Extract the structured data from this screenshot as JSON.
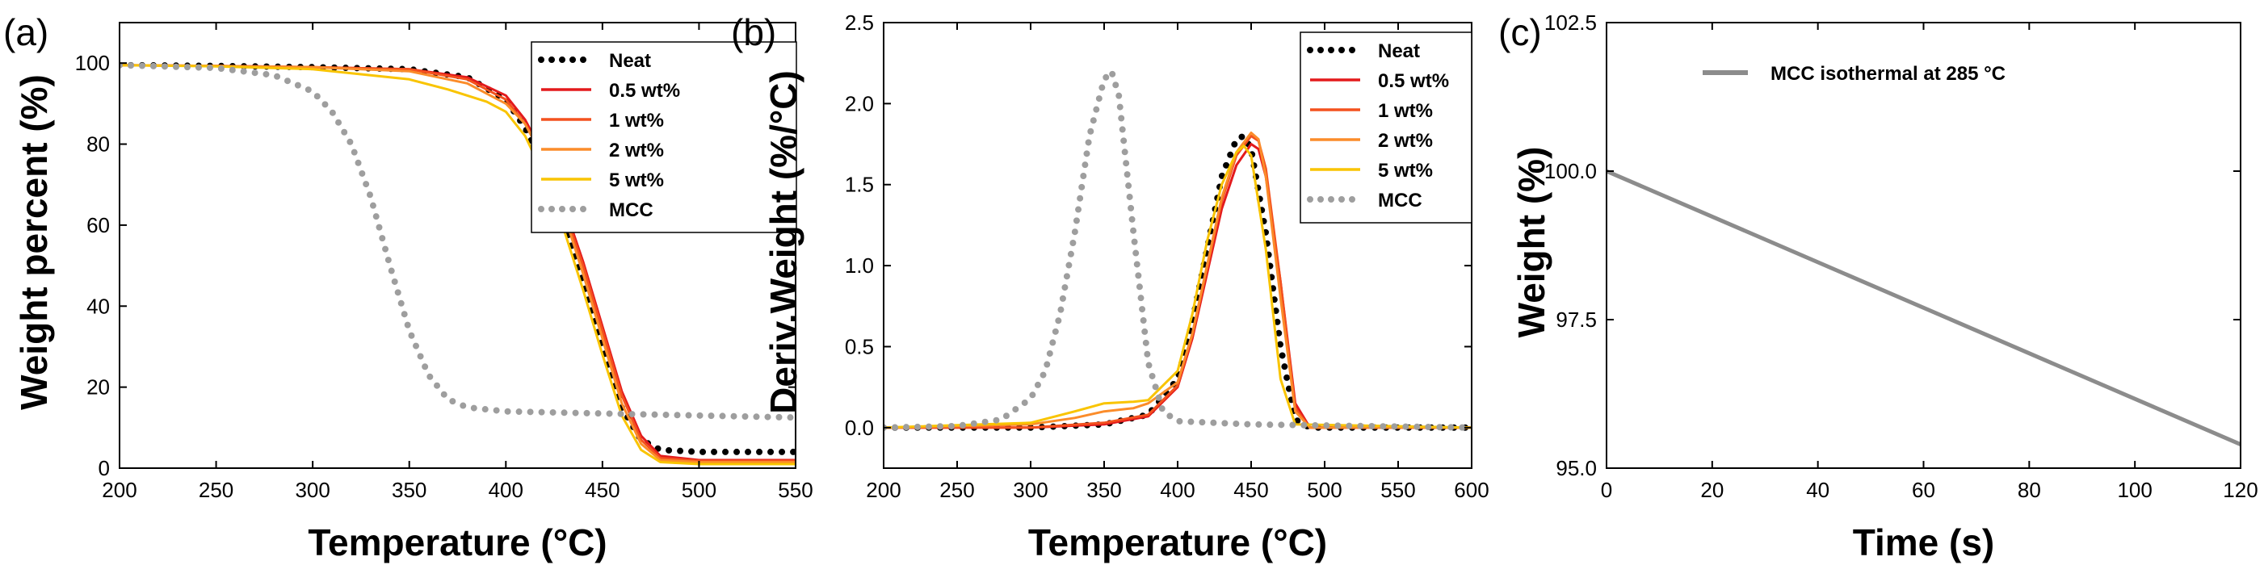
{
  "colors": {
    "neat": "#000000",
    "wt05": "#e31a1c",
    "wt1": "#f4511e",
    "wt2": "#fb8c2a",
    "wt5": "#f9c400",
    "mcc": "#9e9e9e",
    "isothermal": "#8c8c8c"
  },
  "chart_data": [
    {
      "type": "line",
      "panel_label": "(a)",
      "xlabel": "Temperature (°C)",
      "ylabel": "Weight percent (%)",
      "xlim": [
        200,
        550
      ],
      "ylim": [
        0,
        110
      ],
      "xticks": [
        200,
        250,
        300,
        350,
        400,
        450,
        500,
        550
      ],
      "yticks": [
        0,
        20,
        40,
        60,
        80,
        100
      ],
      "xtick_labels": [
        "200",
        "250",
        "300",
        "350",
        "400",
        "450",
        "500",
        "550"
      ],
      "ytick_labels": [
        "0",
        "20",
        "40",
        "60",
        "80",
        "100"
      ],
      "legend_position": "top-right",
      "series": [
        {
          "name": "Neat",
          "style": "dotted-black",
          "x": [
            200,
            250,
            300,
            350,
            380,
            400,
            410,
            420,
            430,
            440,
            450,
            460,
            470,
            480,
            500,
            550
          ],
          "y": [
            99.5,
            99.3,
            99.0,
            98.5,
            96.5,
            91.0,
            84.0,
            74.0,
            61.0,
            46.0,
            30.0,
            15.0,
            7.0,
            4.5,
            4.0,
            4.0
          ]
        },
        {
          "name": "0.5 wt%",
          "style": "solid",
          "x": [
            200,
            250,
            300,
            350,
            380,
            400,
            410,
            420,
            430,
            440,
            450,
            460,
            470,
            480,
            500,
            550
          ],
          "y": [
            99.5,
            99.3,
            99.0,
            98.5,
            96.5,
            92.0,
            86.0,
            77.0,
            65.0,
            51.0,
            35.0,
            19.0,
            8.0,
            3.0,
            2.0,
            2.0
          ]
        },
        {
          "name": "1 wt%",
          "style": "solid",
          "x": [
            200,
            250,
            300,
            350,
            380,
            400,
            410,
            420,
            430,
            440,
            450,
            460,
            470,
            480,
            500,
            550
          ],
          "y": [
            99.5,
            99.3,
            99.0,
            98.5,
            96.0,
            91.0,
            85.0,
            76.0,
            64.0,
            50.0,
            34.0,
            18.0,
            7.0,
            2.5,
            1.8,
            1.8
          ]
        },
        {
          "name": "2 wt%",
          "style": "solid",
          "x": [
            200,
            250,
            300,
            350,
            380,
            400,
            410,
            420,
            430,
            440,
            450,
            460,
            470,
            480,
            500,
            550
          ],
          "y": [
            99.5,
            99.3,
            99.0,
            98.0,
            95.0,
            90.0,
            85.0,
            76.0,
            63.0,
            48.0,
            32.0,
            16.0,
            6.0,
            2.0,
            1.5,
            1.5
          ]
        },
        {
          "name": "5 wt%",
          "style": "solid",
          "x": [
            200,
            250,
            300,
            350,
            370,
            390,
            400,
            410,
            420,
            430,
            440,
            450,
            460,
            470,
            480,
            500,
            550
          ],
          "y": [
            99.5,
            99.2,
            98.5,
            96.0,
            93.5,
            90.5,
            88.0,
            82.0,
            72.0,
            59.0,
            44.0,
            28.0,
            13.0,
            4.5,
            1.5,
            1.0,
            1.0
          ]
        },
        {
          "name": "MCC",
          "style": "dotted-grey",
          "x": [
            200,
            250,
            280,
            300,
            310,
            320,
            330,
            340,
            350,
            360,
            370,
            380,
            400,
            450,
            500,
            550
          ],
          "y": [
            99.5,
            98.8,
            97.0,
            93.0,
            88.0,
            80.0,
            67.0,
            50.0,
            34.0,
            23.0,
            17.0,
            15.0,
            14.0,
            13.5,
            13.0,
            12.5
          ]
        }
      ]
    },
    {
      "type": "line",
      "panel_label": "(b)",
      "xlabel": "Temperature (°C)",
      "ylabel": "Deriv.Weight (%/°C)",
      "xlim": [
        200,
        600
      ],
      "ylim": [
        -0.25,
        2.5
      ],
      "xticks": [
        200,
        250,
        300,
        350,
        400,
        450,
        500,
        550,
        600
      ],
      "yticks": [
        0.0,
        0.5,
        1.0,
        1.5,
        2.0,
        2.5
      ],
      "xtick_labels": [
        "200",
        "250",
        "300",
        "350",
        "400",
        "450",
        "500",
        "550",
        "600"
      ],
      "ytick_labels": [
        "0.0",
        "0.5",
        "1.0",
        "1.5",
        "2.0",
        "2.5"
      ],
      "legend_position": "top-right",
      "series": [
        {
          "name": "Neat",
          "style": "dotted-black",
          "x": [
            200,
            300,
            350,
            380,
            400,
            410,
            420,
            430,
            440,
            445,
            450,
            460,
            470,
            480,
            490,
            600
          ],
          "y": [
            0,
            0,
            0.02,
            0.08,
            0.3,
            0.65,
            1.1,
            1.55,
            1.78,
            1.8,
            1.72,
            1.2,
            0.5,
            0.05,
            0,
            0
          ]
        },
        {
          "name": "0.5 wt%",
          "style": "solid",
          "x": [
            200,
            300,
            350,
            380,
            400,
            410,
            420,
            430,
            440,
            450,
            455,
            460,
            470,
            480,
            490,
            600
          ],
          "y": [
            0,
            0,
            0.02,
            0.07,
            0.25,
            0.55,
            0.95,
            1.35,
            1.62,
            1.75,
            1.72,
            1.55,
            0.9,
            0.15,
            0,
            0
          ]
        },
        {
          "name": "1 wt%",
          "style": "solid",
          "x": [
            200,
            300,
            350,
            380,
            400,
            410,
            420,
            430,
            440,
            450,
            455,
            460,
            470,
            480,
            490,
            600
          ],
          "y": [
            0,
            0,
            0.03,
            0.08,
            0.26,
            0.57,
            0.98,
            1.4,
            1.68,
            1.8,
            1.77,
            1.6,
            0.9,
            0.12,
            0,
            0
          ]
        },
        {
          "name": "2 wt%",
          "style": "solid",
          "x": [
            200,
            300,
            330,
            350,
            370,
            380,
            400,
            410,
            420,
            430,
            440,
            450,
            455,
            460,
            470,
            480,
            490,
            600
          ],
          "y": [
            0,
            0.02,
            0.06,
            0.1,
            0.12,
            0.15,
            0.28,
            0.58,
            1.0,
            1.42,
            1.7,
            1.82,
            1.78,
            1.55,
            0.8,
            0.1,
            0,
            0
          ]
        },
        {
          "name": "5 wt%",
          "style": "solid",
          "x": [
            200,
            300,
            330,
            350,
            370,
            380,
            400,
            410,
            420,
            430,
            440,
            445,
            450,
            460,
            470,
            480,
            600
          ],
          "y": [
            0,
            0.03,
            0.1,
            0.15,
            0.16,
            0.17,
            0.35,
            0.7,
            1.15,
            1.5,
            1.7,
            1.74,
            1.68,
            1.1,
            0.3,
            0.02,
            0
          ]
        },
        {
          "name": "MCC",
          "style": "dotted-grey",
          "x": [
            200,
            250,
            280,
            300,
            310,
            320,
            330,
            340,
            350,
            355,
            360,
            370,
            380,
            390,
            400,
            450,
            600
          ],
          "y": [
            0,
            0.01,
            0.05,
            0.18,
            0.35,
            0.7,
            1.2,
            1.8,
            2.15,
            2.2,
            2.05,
            1.2,
            0.4,
            0.1,
            0.04,
            0.02,
            0
          ]
        }
      ]
    },
    {
      "type": "line",
      "panel_label": "(c)",
      "xlabel": "Time (s)",
      "ylabel": "Weight (%)",
      "xlim": [
        0,
        120
      ],
      "ylim": [
        95.0,
        102.5
      ],
      "xticks": [
        0,
        20,
        40,
        60,
        80,
        100,
        120
      ],
      "yticks": [
        95.0,
        97.5,
        100.0,
        102.5
      ],
      "xtick_labels": [
        "0",
        "20",
        "40",
        "60",
        "80",
        "100",
        "120"
      ],
      "ytick_labels": [
        "95.0",
        "97.5",
        "100.0",
        "102.5"
      ],
      "legend_position": "top-left",
      "series": [
        {
          "name": "MCC isothermal at 285 °C",
          "style": "solid-grey",
          "x": [
            0,
            120
          ],
          "y": [
            100.0,
            95.4
          ]
        }
      ]
    }
  ]
}
